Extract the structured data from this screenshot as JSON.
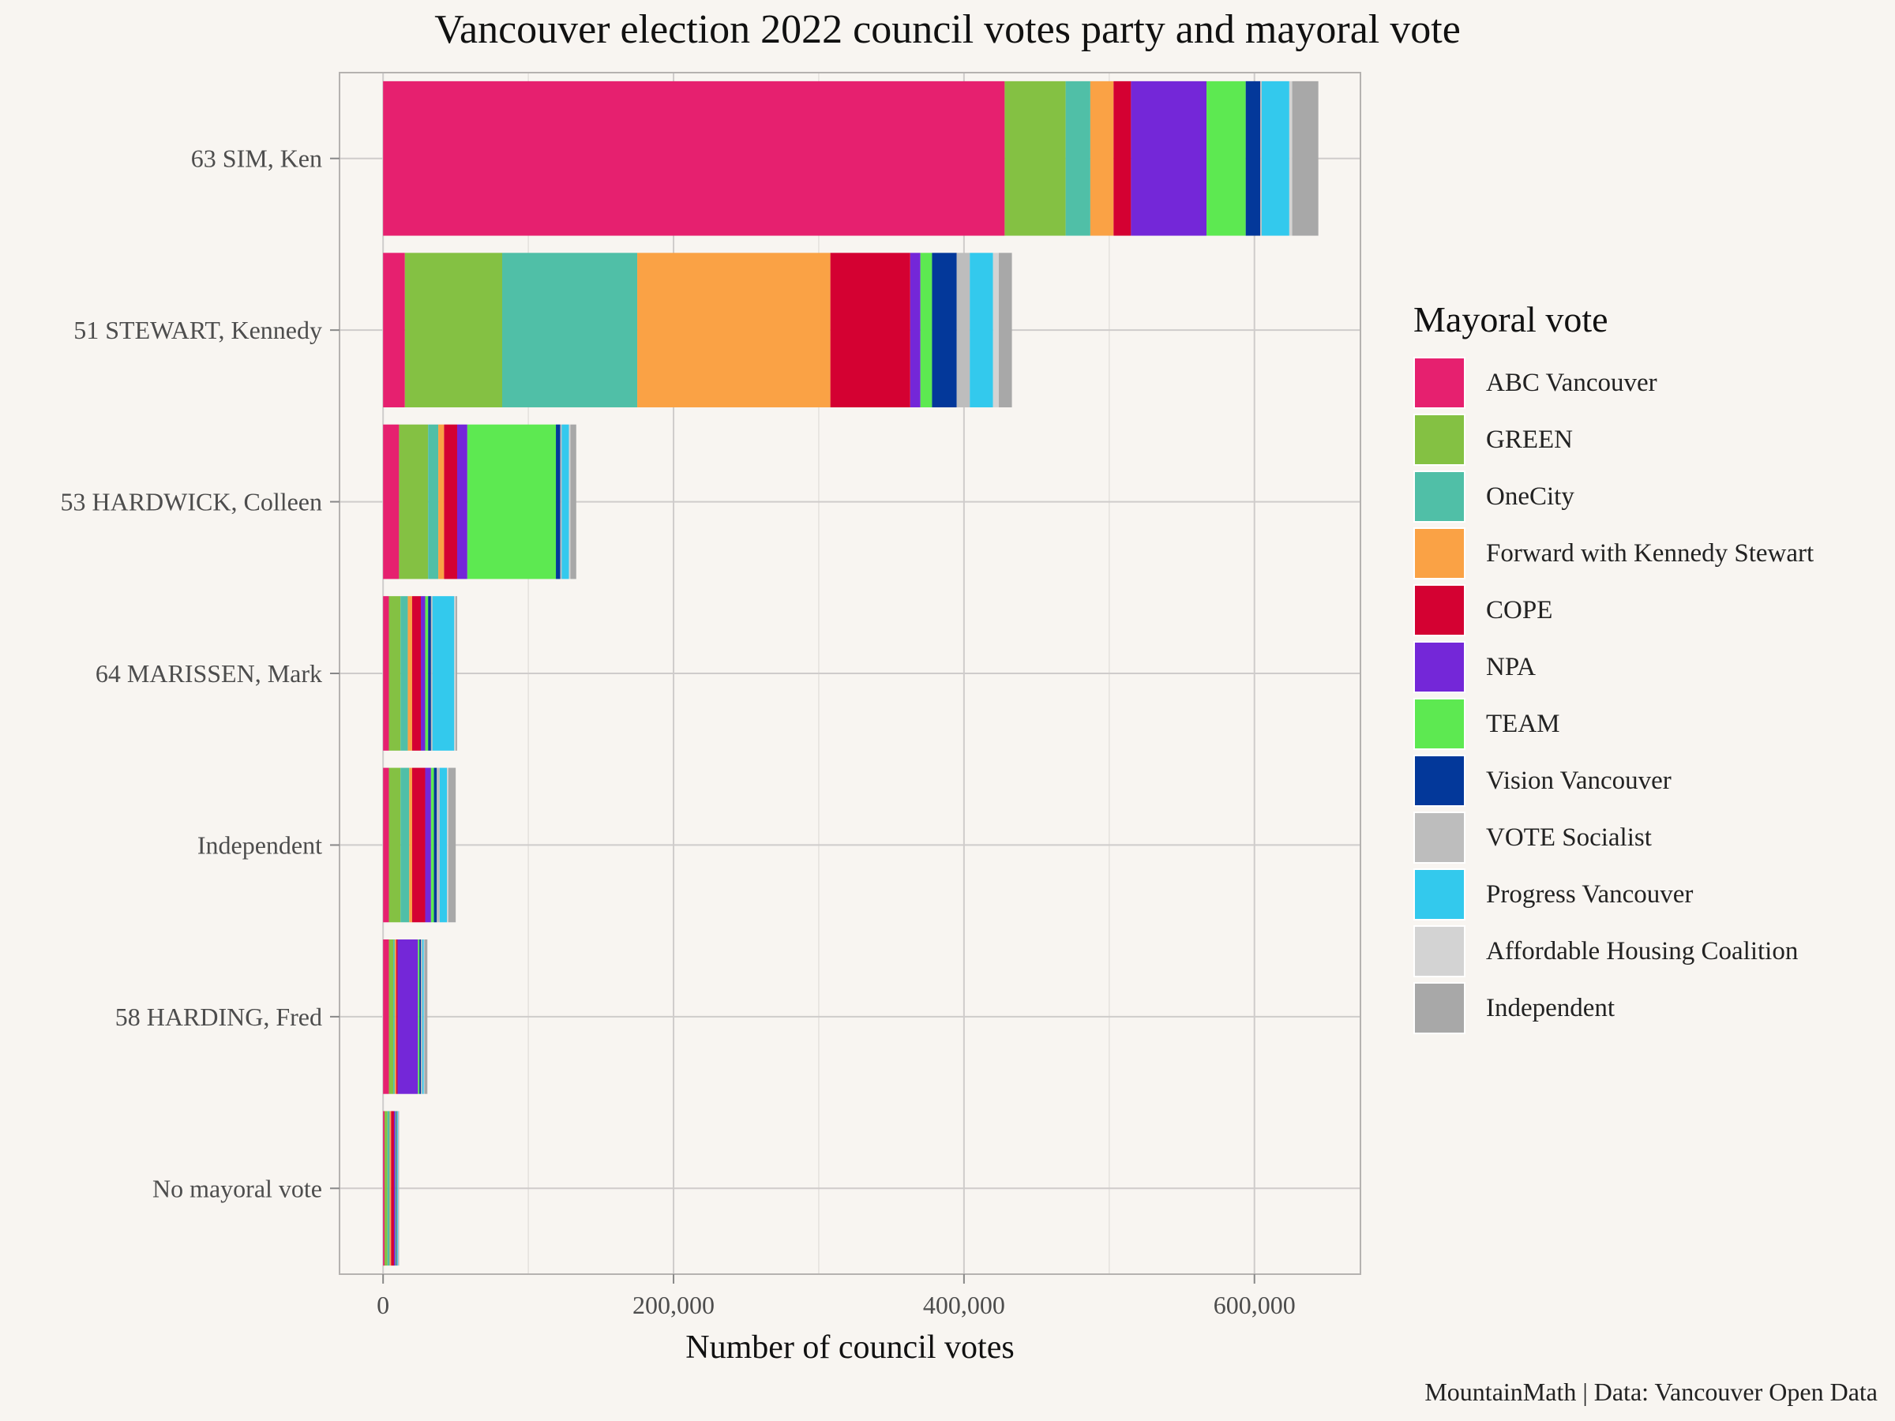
{
  "title": "Vancouver election 2022 council votes party and mayoral vote",
  "caption": "MountainMath | Data: Vancouver Open Data",
  "legend": {
    "title": "Mayoral vote",
    "items": [
      {
        "label": "ABC Vancouver",
        "color": "#e6206f"
      },
      {
        "label": "GREEN",
        "color": "#84c143"
      },
      {
        "label": "OneCity",
        "color": "#50bfa7"
      },
      {
        "label": "Forward with Kennedy Stewart",
        "color": "#faa245"
      },
      {
        "label": "COPE",
        "color": "#d40132"
      },
      {
        "label": "NPA",
        "color": "#7427d8"
      },
      {
        "label": "TEAM",
        "color": "#5de951"
      },
      {
        "label": "Vision Vancouver",
        "color": "#03389a"
      },
      {
        "label": "VOTE Socialist",
        "color": "#bdbdbd"
      },
      {
        "label": "Progress Vancouver",
        "color": "#33c9ed"
      },
      {
        "label": "Affordable Housing Coalition",
        "color": "#d3d3d3"
      },
      {
        "label": "Independent",
        "color": "#a8a8a8"
      }
    ]
  },
  "chart_data": {
    "type": "bar",
    "orientation": "horizontal",
    "stacked": true,
    "xlabel": "Number of council votes",
    "ylabel": "",
    "xlim": [
      -30000,
      673000
    ],
    "x_ticks": [
      0,
      200000,
      400000,
      600000
    ],
    "x_tick_labels": [
      "0",
      "200,000",
      "400,000",
      "600,000"
    ],
    "grid": true,
    "legend_position": "right",
    "categories": [
      "63 SIM, Ken",
      "51 STEWART, Kennedy",
      "53 HARDWICK, Colleen",
      "64 MARISSEN, Mark",
      "Independent",
      "58 HARDING, Fred",
      "No mayoral vote"
    ],
    "series": [
      {
        "name": "ABC Vancouver",
        "color": "#e6206f",
        "values": [
          428000,
          15000,
          11000,
          4000,
          4000,
          4000,
          1000
        ]
      },
      {
        "name": "GREEN",
        "color": "#84c143",
        "values": [
          42000,
          67000,
          20000,
          8000,
          8000,
          3000,
          2000
        ]
      },
      {
        "name": "OneCity",
        "color": "#50bfa7",
        "values": [
          17000,
          93000,
          7000,
          5000,
          6000,
          1000,
          1500
        ]
      },
      {
        "name": "Forward with Kennedy Stewart",
        "color": "#faa245",
        "values": [
          16000,
          133000,
          4000,
          3000,
          2000,
          1000,
          1000
        ]
      },
      {
        "name": "COPE",
        "color": "#d40132",
        "values": [
          12000,
          55000,
          9000,
          6000,
          9000,
          1000,
          2000
        ]
      },
      {
        "name": "NPA",
        "color": "#7427d8",
        "values": [
          52000,
          7000,
          7000,
          3000,
          4000,
          14000,
          1000
        ]
      },
      {
        "name": "TEAM",
        "color": "#5de951",
        "values": [
          27000,
          8000,
          61000,
          2000,
          2000,
          1000,
          500
        ]
      },
      {
        "name": "Vision Vancouver",
        "color": "#03389a",
        "values": [
          10000,
          17000,
          3000,
          2000,
          2000,
          1000,
          500
        ]
      },
      {
        "name": "VOTE Socialist",
        "color": "#bdbdbd",
        "values": [
          1000,
          9000,
          1000,
          1000,
          2000,
          1000,
          300
        ]
      },
      {
        "name": "Progress Vancouver",
        "color": "#33c9ed",
        "values": [
          19000,
          16000,
          5000,
          15000,
          5000,
          1000,
          500
        ]
      },
      {
        "name": "Affordable Housing Coalition",
        "color": "#d3d3d3",
        "values": [
          2000,
          4000,
          1000,
          1000,
          1000,
          500,
          200
        ]
      },
      {
        "name": "Independent",
        "color": "#a8a8a8",
        "values": [
          18000,
          9000,
          4000,
          1000,
          5000,
          2000,
          500
        ]
      }
    ]
  }
}
